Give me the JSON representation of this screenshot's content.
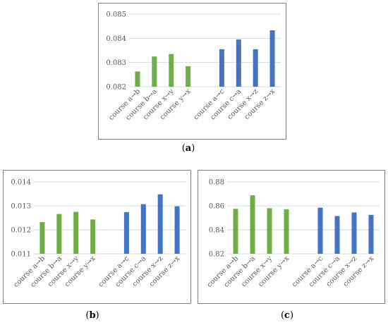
{
  "captions": {
    "a": "a",
    "b": "b",
    "c": "c"
  },
  "colors": {
    "green": "#70ad47",
    "blue": "#4472c4",
    "grid": "#d9d9d9",
    "text": "#595959"
  },
  "chart_data": [
    {
      "panel": "a",
      "type": "bar",
      "categories": [
        "course a→b",
        "course b→a",
        "course x→y",
        "course y→x",
        "",
        "course a→c",
        "course c→a",
        "course x→z",
        "course z→x"
      ],
      "values": [
        0.08263,
        0.08325,
        0.08335,
        0.08285,
        null,
        0.08355,
        0.08395,
        0.08355,
        0.08433
      ],
      "bar_colors": [
        "green",
        "green",
        "green",
        "green",
        null,
        "blue",
        "blue",
        "blue",
        "blue"
      ],
      "ylim": [
        0.082,
        0.085
      ],
      "yticks": [
        "0.082",
        "0.083",
        "0.084",
        "0.085"
      ],
      "grid": true
    },
    {
      "panel": "b",
      "type": "bar",
      "categories": [
        "course a→b",
        "course b→a",
        "course x→y",
        "course y→x",
        "",
        "course a→c",
        "course c→a",
        "course x→z",
        "course z→x"
      ],
      "values": [
        0.01232,
        0.01266,
        0.01275,
        0.01243,
        null,
        0.01274,
        0.01307,
        0.01348,
        0.01298
      ],
      "bar_colors": [
        "green",
        "green",
        "green",
        "green",
        null,
        "blue",
        "blue",
        "blue",
        "blue"
      ],
      "ylim": [
        0.011,
        0.014
      ],
      "yticks": [
        "0.011",
        "0.012",
        "0.013",
        "0.014"
      ],
      "grid": true
    },
    {
      "panel": "c",
      "type": "bar",
      "categories": [
        "course a→b",
        "course b→a",
        "course x→y",
        "course y→x",
        "",
        "course a→c",
        "course c→a",
        "course x→z",
        "course z→x"
      ],
      "values": [
        0.8575,
        0.8688,
        0.858,
        0.8572,
        null,
        0.8585,
        0.8515,
        0.8545,
        0.8525
      ],
      "bar_colors": [
        "green",
        "green",
        "green",
        "green",
        null,
        "blue",
        "blue",
        "blue",
        "blue"
      ],
      "ylim": [
        0.82,
        0.88
      ],
      "yticks": [
        "0.82",
        "0.84",
        "0.86",
        "0.88"
      ],
      "grid": true
    }
  ]
}
